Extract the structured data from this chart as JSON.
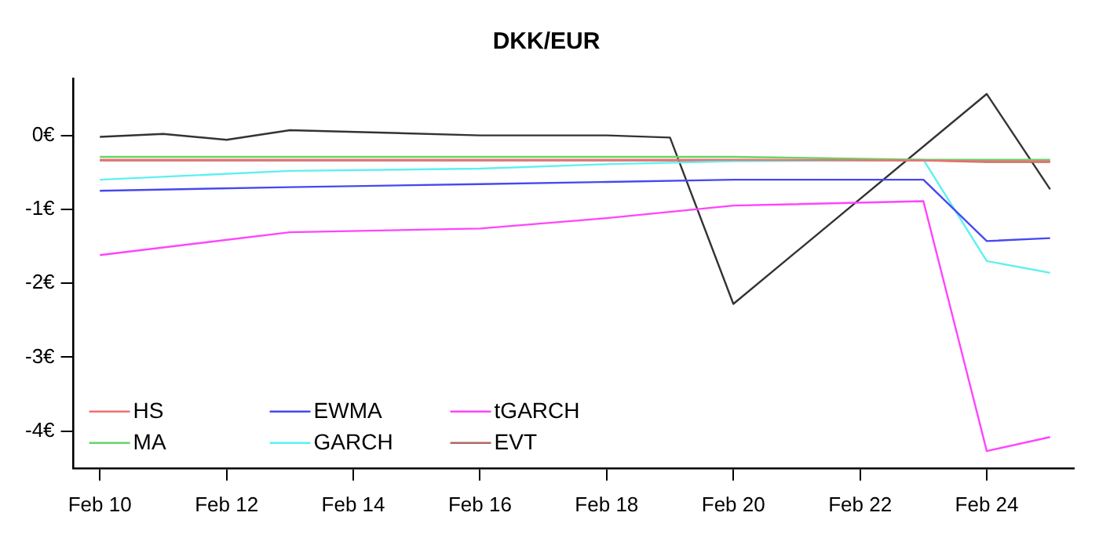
{
  "chart_data": {
    "type": "line",
    "title": "DKK/EUR",
    "x": [
      "--02-10",
      "--02-13",
      "--02-16",
      "--02-18",
      "--02-20",
      "--02-23",
      "--02-24",
      "--02-25"
    ],
    "series": [
      {
        "name": "HS",
        "color": "#f07070",
        "values": [
          -0.33,
          -0.33,
          -0.33,
          -0.33,
          -0.33,
          -0.34,
          -0.35,
          -0.35
        ]
      },
      {
        "name": "MA",
        "color": "#66d466",
        "values": [
          -0.29,
          -0.29,
          -0.29,
          -0.29,
          -0.29,
          -0.33,
          -0.33,
          -0.33
        ]
      },
      {
        "name": "EWMA",
        "color": "#4848f0",
        "values": [
          -0.75,
          -0.7,
          -0.66,
          -0.63,
          -0.6,
          -0.6,
          -1.43,
          -1.39
        ]
      },
      {
        "name": "GARCH",
        "color": "#5ef0f0",
        "values": [
          -0.6,
          -0.48,
          -0.45,
          -0.39,
          -0.35,
          -0.33,
          -1.7,
          -1.86
        ]
      },
      {
        "name": "tGARCH",
        "color": "#ff44ff",
        "values": [
          -1.62,
          -1.31,
          -1.26,
          -1.12,
          -0.95,
          -0.89,
          -4.27,
          -4.08
        ]
      },
      {
        "name": "EVT",
        "color": "#b06868",
        "values": [
          -0.34,
          -0.34,
          -0.34,
          -0.34,
          -0.34,
          -0.34,
          -0.36,
          -0.36
        ]
      },
      {
        "color": "#333333",
        "x": [
          "--02-10",
          "--02-11",
          "--02-12",
          "--02-13",
          "--02-16",
          "--02-18",
          "--02-19",
          "--02-20",
          "--02-24",
          "--02-25"
        ],
        "values": [
          -0.02,
          0.02,
          -0.06,
          0.07,
          0.0,
          0.0,
          -0.03,
          -2.28,
          0.56,
          -0.73
        ]
      }
    ],
    "xlim": [
      "--02-09T14:00",
      "--02-25T09:00"
    ],
    "xticks": [
      {
        "value": "--02-10",
        "label": "Feb 10"
      },
      {
        "value": "--02-12",
        "label": "Feb 12"
      },
      {
        "value": "--02-14",
        "label": "Feb 14"
      },
      {
        "value": "--02-16",
        "label": "Feb 16"
      },
      {
        "value": "--02-18",
        "label": "Feb 18"
      },
      {
        "value": "--02-20",
        "label": "Feb 20"
      },
      {
        "value": "--02-22",
        "label": "Feb 22"
      },
      {
        "value": "--02-24",
        "label": "Feb 24"
      }
    ],
    "ylim": [
      -4.5,
      0.77
    ],
    "yticks": [
      {
        "value": 0,
        "label": "0€"
      },
      {
        "value": -1,
        "label": "-1€"
      },
      {
        "value": -2,
        "label": "-2€"
      },
      {
        "value": -3,
        "label": "-3€"
      },
      {
        "value": -4,
        "label": "-4€"
      }
    ],
    "legend": "bottom left",
    "grid": false,
    "line_style": "solid",
    "marker": "none"
  }
}
